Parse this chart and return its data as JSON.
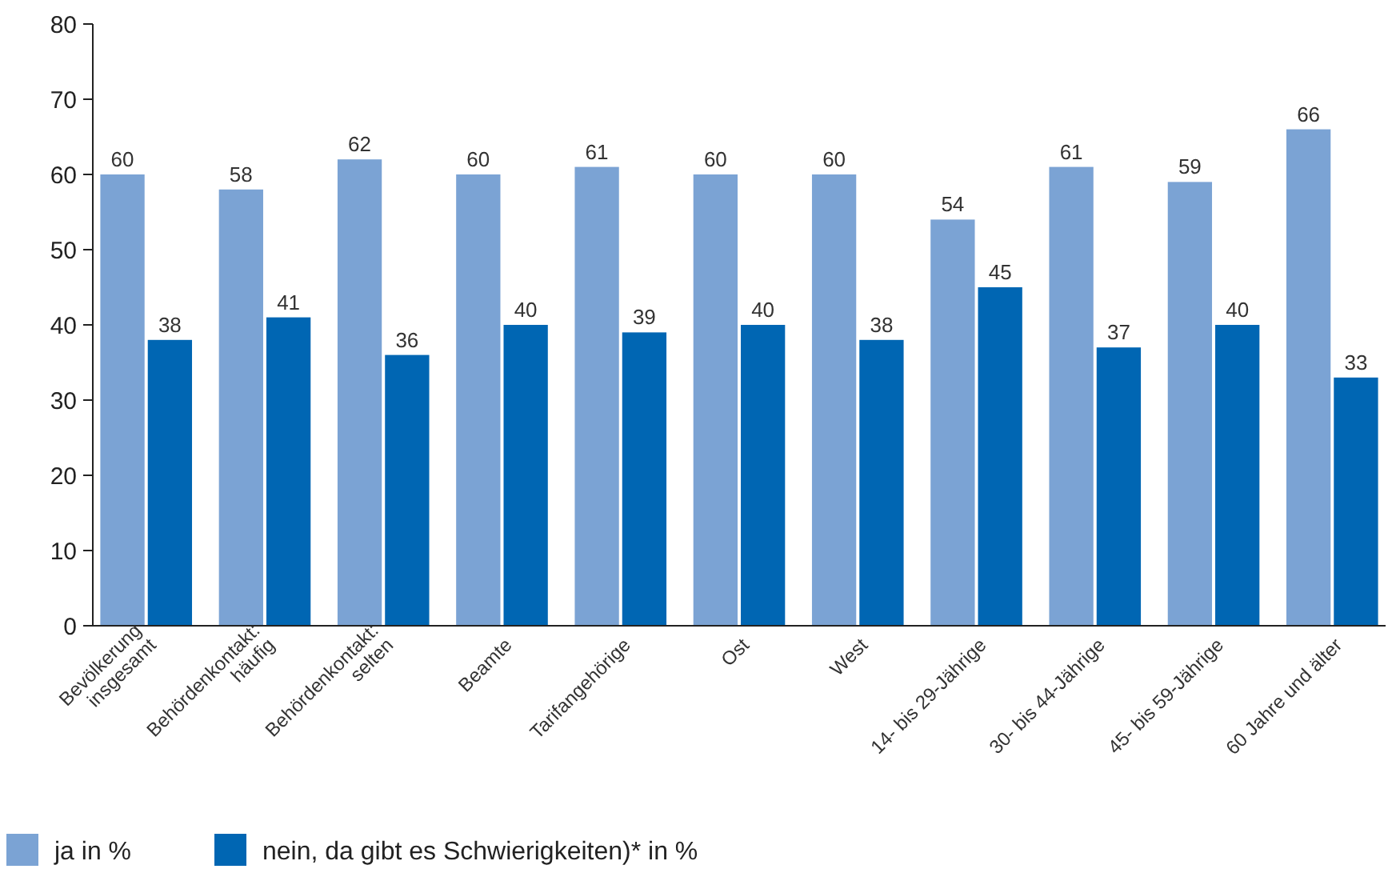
{
  "chart_data": {
    "type": "bar",
    "categories": [
      "Bevölkerung\ninsgesamt",
      "Behördenkontakt:\nhäufig",
      "Behördenkontakt:\nselten",
      "Beamte",
      "Tarifangehörige",
      "Ost",
      "West",
      "14- bis 29-Jährige",
      "30- bis 44-Jährige",
      "45- bis 59-Jährige",
      "60 Jahre und älter"
    ],
    "series": [
      {
        "name": "ja in %",
        "color": "#7ba3d4",
        "values": [
          60,
          58,
          62,
          60,
          61,
          60,
          60,
          54,
          61,
          59,
          66
        ]
      },
      {
        "name": "nein, da gibt es Schwierigkeiten)* in %",
        "color": "#0066b3",
        "values": [
          38,
          41,
          36,
          40,
          39,
          40,
          38,
          45,
          37,
          40,
          33
        ]
      }
    ],
    "ylim": [
      0,
      80
    ],
    "yticks": [
      0,
      10,
      20,
      30,
      40,
      50,
      60,
      70,
      80
    ],
    "data_labels": true,
    "legend": "bottom",
    "grid": false
  }
}
